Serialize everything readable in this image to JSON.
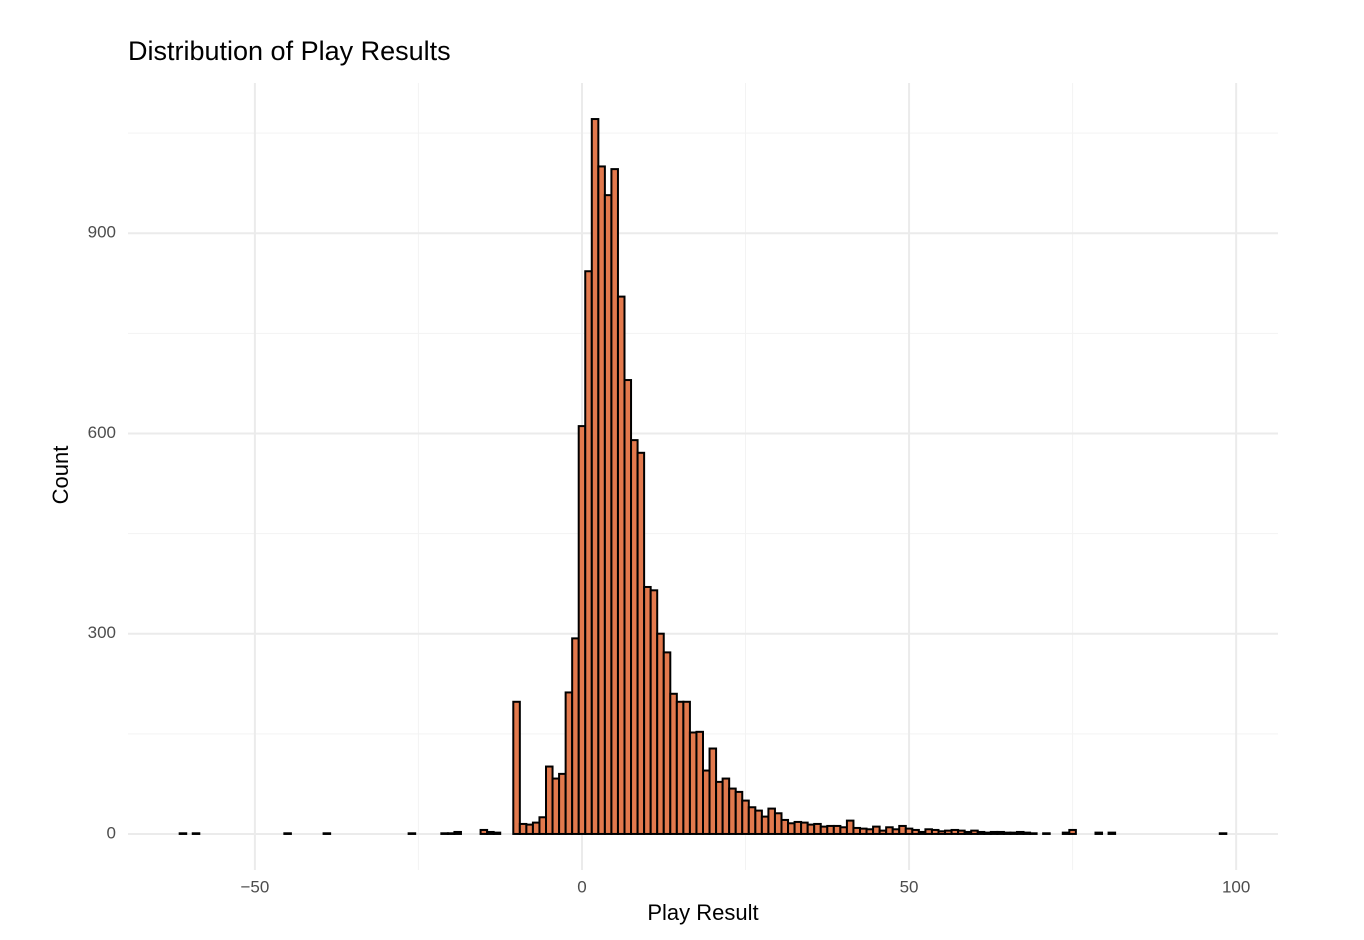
{
  "chart_data": {
    "type": "histogram",
    "title": "Distribution of Play Results",
    "x_label": "Play Result",
    "y_label": "Count",
    "bins": [
      -62.5,
      -61.5,
      -60.5,
      -59.5,
      -58.5,
      -57.5,
      -56.5,
      -55.5,
      -54.5,
      -53.5,
      -52.5,
      -51.5,
      -50.5,
      -49.5,
      -48.5,
      -47.5,
      -46.5,
      -45.5,
      -44.5,
      -43.5,
      -42.5,
      -41.5,
      -40.5,
      -39.5,
      -38.5,
      -37.5,
      -36.5,
      -35.5,
      -34.5,
      -33.5,
      -32.5,
      -31.5,
      -30.5,
      -29.5,
      -28.5,
      -27.5,
      -26.5,
      -25.5,
      -24.5,
      -23.5,
      -22.5,
      -21.5,
      -20.5,
      -19.5,
      -18.5,
      -17.5,
      -16.5,
      -15.5,
      -14.5,
      -13.5,
      -12.5,
      -11.5,
      -10.5,
      -9.5,
      -8.5,
      -7.5,
      -6.5,
      -5.5,
      -4.5,
      -3.5,
      -2.5,
      -1.5,
      -0.5,
      0.5,
      1.5,
      2.5,
      3.5,
      4.5,
      5.5,
      6.5,
      7.5,
      8.5,
      9.5,
      10.5,
      11.5,
      12.5,
      13.5,
      14.5,
      15.5,
      16.5,
      17.5,
      18.5,
      19.5,
      20.5,
      21.5,
      22.5,
      23.5,
      24.5,
      25.5,
      26.5,
      27.5,
      28.5,
      29.5,
      30.5,
      31.5,
      32.5,
      33.5,
      34.5,
      35.5,
      36.5,
      37.5,
      38.5,
      39.5,
      40.5,
      41.5,
      42.5,
      43.5,
      44.5,
      45.5,
      46.5,
      47.5,
      48.5,
      49.5,
      50.5,
      51.5,
      52.5,
      53.5,
      54.5,
      55.5,
      56.5,
      57.5,
      58.5,
      59.5,
      60.5,
      61.5,
      62.5,
      63.5,
      64.5,
      65.5,
      66.5,
      67.5,
      68.5,
      69.5,
      70.5,
      71.5,
      72.5,
      73.5,
      74.5,
      75.5,
      76.5,
      77.5,
      78.5,
      79.5,
      80.5,
      81.5,
      82.5,
      83.5,
      84.5,
      85.5,
      86.5,
      87.5,
      88.5,
      89.5,
      90.5,
      91.5,
      92.5,
      93.5,
      94.5,
      95.5,
      96.5,
      97.5,
      98.5
    ],
    "values": [
      0,
      1,
      0,
      1,
      0,
      0,
      0,
      0,
      0,
      0,
      0,
      0,
      0,
      0,
      0,
      0,
      0,
      1,
      0,
      0,
      0,
      0,
      0,
      1,
      0,
      0,
      0,
      0,
      0,
      0,
      0,
      0,
      0,
      0,
      0,
      0,
      1,
      0,
      0,
      0,
      0,
      1,
      1,
      3,
      0,
      0,
      0,
      6,
      3,
      2,
      0,
      0,
      198,
      15,
      14,
      17,
      25,
      101,
      83,
      90,
      212,
      293,
      611,
      843,
      1071,
      1000,
      957,
      996,
      805,
      680,
      590,
      571,
      370,
      365,
      300,
      272,
      210,
      198,
      198,
      152,
      153,
      95,
      128,
      78,
      83,
      68,
      63,
      50,
      40,
      35,
      26,
      38,
      31,
      21,
      16,
      18,
      17,
      14,
      15,
      11,
      12,
      12,
      10,
      20,
      9,
      8,
      7,
      11,
      5,
      10,
      7,
      12,
      8,
      6,
      3,
      7,
      6,
      4,
      5,
      6,
      5,
      3,
      5,
      3,
      2,
      3,
      3,
      2,
      2,
      3,
      2,
      1,
      0,
      1,
      0,
      0,
      2,
      6,
      0,
      0,
      0,
      2,
      0,
      2,
      0,
      0,
      0,
      0,
      0,
      0,
      0,
      0,
      0,
      0,
      0,
      0,
      0,
      0,
      0,
      0,
      1
    ],
    "color": "#e2794d",
    "edge_color": "#000000",
    "xlim": [
      -69.4,
      106.4
    ],
    "ylim": [
      -54,
      1125
    ],
    "xticks": [
      {
        "value": -50,
        "label": "−50"
      },
      0,
      50,
      100
    ],
    "yticks": [
      0,
      300,
      600,
      900
    ],
    "grid": true,
    "minor_grid": true
  }
}
